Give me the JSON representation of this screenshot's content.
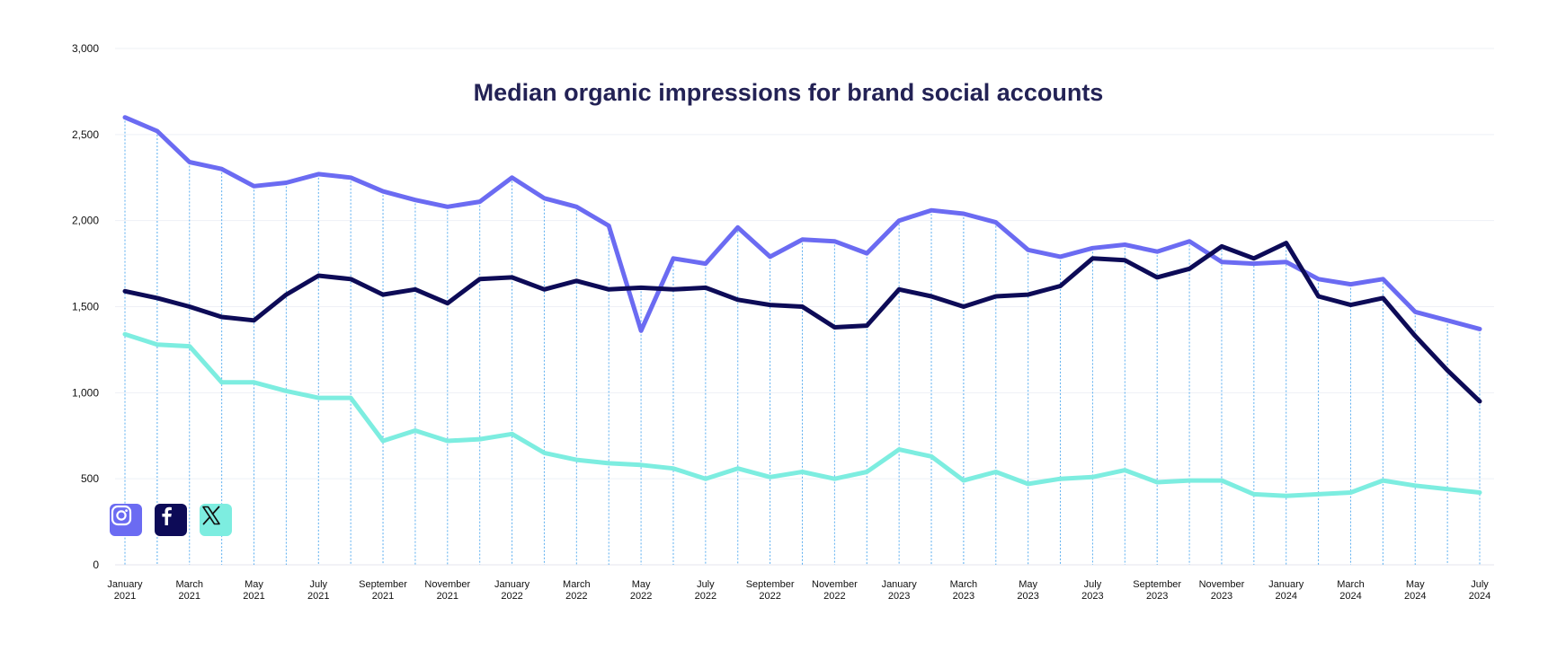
{
  "chart_data": {
    "type": "line",
    "title": "Median organic impressions for brand social accounts",
    "ylim": [
      0,
      3000
    ],
    "yticks": [
      0,
      500,
      1000,
      1500,
      2000,
      2500,
      3000
    ],
    "ytick_labels": [
      "0",
      "500",
      "1,000",
      "1,500",
      "2,000",
      "2,500",
      "3,000"
    ],
    "grid": true,
    "x": [
      "2021-01",
      "2021-02",
      "2021-03",
      "2021-04",
      "2021-05",
      "2021-06",
      "2021-07",
      "2021-08",
      "2021-09",
      "2021-10",
      "2021-11",
      "2021-12",
      "2022-01",
      "2022-02",
      "2022-03",
      "2022-04",
      "2022-05",
      "2022-06",
      "2022-07",
      "2022-08",
      "2022-09",
      "2022-10",
      "2022-11",
      "2022-12",
      "2023-01",
      "2023-02",
      "2023-03",
      "2023-04",
      "2023-05",
      "2023-06",
      "2023-07",
      "2023-08",
      "2023-09",
      "2023-10",
      "2023-11",
      "2023-12",
      "2024-01",
      "2024-02",
      "2024-03",
      "2024-04",
      "2024-05",
      "2024-06",
      "2024-07"
    ],
    "xtick_labels": [
      {
        "x": "2021-01",
        "month": "January",
        "year": "2021"
      },
      {
        "x": "2021-03",
        "month": "March",
        "year": "2021"
      },
      {
        "x": "2021-05",
        "month": "May",
        "year": "2021"
      },
      {
        "x": "2021-07",
        "month": "July",
        "year": "2021"
      },
      {
        "x": "2021-09",
        "month": "September",
        "year": "2021"
      },
      {
        "x": "2021-11",
        "month": "November",
        "year": "2021"
      },
      {
        "x": "2022-01",
        "month": "January",
        "year": "2022"
      },
      {
        "x": "2022-03",
        "month": "March",
        "year": "2022"
      },
      {
        "x": "2022-05",
        "month": "May",
        "year": "2022"
      },
      {
        "x": "2022-07",
        "month": "July",
        "year": "2022"
      },
      {
        "x": "2022-09",
        "month": "September",
        "year": "2022"
      },
      {
        "x": "2022-11",
        "month": "November",
        "year": "2022"
      },
      {
        "x": "2023-01",
        "month": "January",
        "year": "2023"
      },
      {
        "x": "2023-03",
        "month": "March",
        "year": "2023"
      },
      {
        "x": "2023-05",
        "month": "May",
        "year": "2023"
      },
      {
        "x": "2023-07",
        "month": "July",
        "year": "2023"
      },
      {
        "x": "2023-09",
        "month": "September",
        "year": "2023"
      },
      {
        "x": "2023-11",
        "month": "November",
        "year": "2023"
      },
      {
        "x": "2024-01",
        "month": "January",
        "year": "2024"
      },
      {
        "x": "2024-03",
        "month": "March",
        "year": "2024"
      },
      {
        "x": "2024-05",
        "month": "May",
        "year": "2024"
      },
      {
        "x": "2024-07",
        "month": "July",
        "year": "2024"
      }
    ],
    "series": [
      {
        "icon": "instagram-icon",
        "color": "#6B6BF2",
        "values": [
          2600,
          2520,
          2340,
          2300,
          2200,
          2220,
          2270,
          2250,
          2170,
          2120,
          2080,
          2110,
          2250,
          2130,
          2080,
          1970,
          1360,
          1780,
          1750,
          1960,
          1790,
          1890,
          1880,
          1810,
          2000,
          2060,
          2040,
          1990,
          1830,
          1790,
          1840,
          1860,
          1820,
          1880,
          1760,
          1750,
          1760,
          1660,
          1630,
          1660,
          1470,
          1420,
          1370
        ]
      },
      {
        "icon": "facebook-icon",
        "color": "#0D0B57",
        "values": [
          1590,
          1550,
          1500,
          1440,
          1420,
          1570,
          1680,
          1660,
          1570,
          1600,
          1520,
          1660,
          1670,
          1600,
          1650,
          1600,
          1610,
          1600,
          1610,
          1540,
          1510,
          1500,
          1380,
          1390,
          1600,
          1560,
          1500,
          1560,
          1570,
          1620,
          1780,
          1770,
          1670,
          1720,
          1850,
          1780,
          1870,
          1560,
          1510,
          1550,
          1330,
          1130,
          950
        ]
      },
      {
        "icon": "x-icon",
        "color": "#7DEDE0",
        "values": [
          1340,
          1280,
          1270,
          1060,
          1060,
          1010,
          970,
          970,
          720,
          780,
          720,
          730,
          760,
          650,
          610,
          590,
          580,
          560,
          500,
          560,
          510,
          540,
          500,
          540,
          670,
          630,
          490,
          540,
          470,
          500,
          510,
          550,
          480,
          490,
          490,
          410,
          400,
          410,
          420,
          490,
          460,
          440,
          420
        ]
      }
    ]
  }
}
